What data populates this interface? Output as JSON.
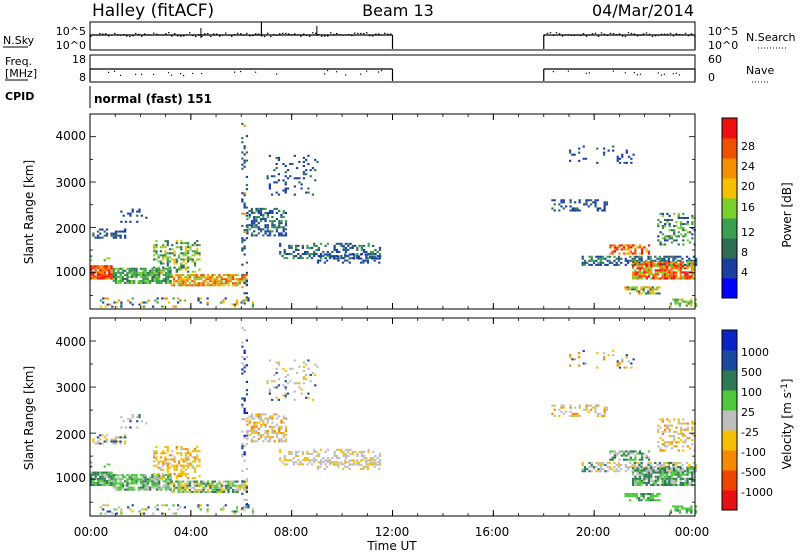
{
  "header": {
    "station": "Halley (fitACF)",
    "beam": "Beam 13",
    "date": "04/Mar/2014"
  },
  "noise_panel": {
    "left_label": "N.Sky",
    "left_ticks": [
      "10^5",
      "10^0"
    ],
    "right_label": "N.Search",
    "right_ticks": [
      "10^5",
      "10^0"
    ]
  },
  "freq_panel": {
    "left_label_1": "Freq.",
    "left_label_2": "[MHz]",
    "left_ticks": [
      "18",
      "8"
    ],
    "right_label": "Nave",
    "right_ticks": [
      "60",
      "0"
    ]
  },
  "cpid": {
    "label": "CPID",
    "value": "normal (fast) 151"
  },
  "colors": {
    "power": [
      "#0000ff",
      "#1a3fa0",
      "#2f6e55",
      "#3aa050",
      "#7ad12c",
      "#f5c000",
      "#f59000",
      "#f05000",
      "#ee1010"
    ],
    "velocity": [
      "#0b24c8",
      "#1a4aa0",
      "#2e7a55",
      "#4cc83a",
      "#bebebe",
      "#f5c000",
      "#f58a00",
      "#f04500",
      "#e81010"
    ]
  },
  "chart_data": [
    {
      "type": "heatmap",
      "name": "power",
      "xlabel": "",
      "ylabel": "Slant Range [km]",
      "xlim": [
        0,
        24
      ],
      "ylim": [
        200,
        4500
      ],
      "y_ticks": [
        "4000",
        "3000",
        "2000",
        "1000"
      ],
      "colorbar_label": "Power [dB]",
      "colorbar_ticks": [
        "28",
        "24",
        "20",
        "16",
        "12",
        "8",
        "4"
      ],
      "data_gaps_ut": [
        [
          12,
          18
        ]
      ]
    },
    {
      "type": "heatmap",
      "name": "velocity",
      "xlabel": "Time UT",
      "ylabel": "Slant Range [km]",
      "xlim": [
        0,
        24
      ],
      "ylim": [
        200,
        4500
      ],
      "x_ticks": [
        "00:00",
        "04:00",
        "08:00",
        "12:00",
        "16:00",
        "20:00",
        "00:00"
      ],
      "y_ticks": [
        "4000",
        "3000",
        "2000",
        "1000"
      ],
      "colorbar_label": "Velocity [m s",
      "colorbar_unit_sup": "-1",
      "colorbar_unit_close": "]",
      "colorbar_ticks": [
        "1000",
        "500",
        "100",
        "25",
        "-25",
        "-100",
        "-500",
        "-1000"
      ],
      "data_gaps_ut": [
        [
          12,
          18
        ]
      ]
    }
  ]
}
